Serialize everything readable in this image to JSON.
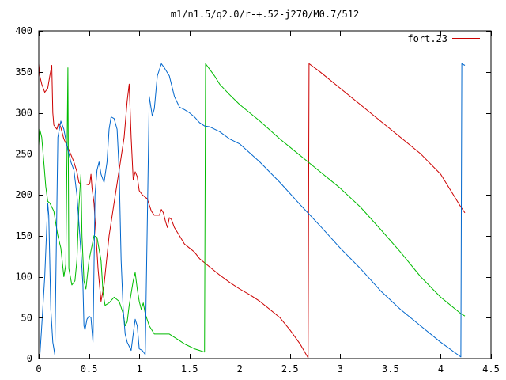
{
  "chart_data": {
    "type": "line",
    "title": "m1/n1.5/q2.0/r-+.52-j270/M0.7/512",
    "xlabel": "",
    "ylabel": "",
    "xlim": [
      0,
      4.5
    ],
    "ylim": [
      0,
      400
    ],
    "x_ticks": [
      0,
      0.5,
      1,
      1.5,
      2,
      2.5,
      3,
      3.5,
      4,
      4.5
    ],
    "x_tick_labels": [
      "0",
      "0.5",
      "1",
      "1.5",
      "2",
      "2.5",
      "3",
      "3.5",
      "4",
      "4.5"
    ],
    "y_ticks": [
      0,
      50,
      100,
      150,
      200,
      250,
      300,
      350,
      400
    ],
    "y_tick_labels": [
      "0",
      "50",
      "100",
      "150",
      "200",
      "250",
      "300",
      "350",
      "400"
    ],
    "grid": false,
    "legend": {
      "position": "top-right",
      "entries": [
        {
          "label": "fort.23",
          "color": "#cc0000"
        }
      ]
    },
    "series": [
      {
        "name": "fort.23",
        "color": "#cc0000",
        "points": [
          [
            0,
            360
          ],
          [
            0.01,
            345
          ],
          [
            0.03,
            335
          ],
          [
            0.06,
            325
          ],
          [
            0.09,
            330
          ],
          [
            0.11,
            345
          ],
          [
            0.13,
            358
          ],
          [
            0.14,
            300
          ],
          [
            0.15,
            285
          ],
          [
            0.18,
            280
          ],
          [
            0.2,
            288
          ],
          [
            0.22,
            282
          ],
          [
            0.25,
            268
          ],
          [
            0.3,
            255
          ],
          [
            0.35,
            240
          ],
          [
            0.38,
            228
          ],
          [
            0.4,
            215
          ],
          [
            0.42,
            213
          ],
          [
            0.47,
            213
          ],
          [
            0.5,
            212
          ],
          [
            0.51,
            215
          ],
          [
            0.52,
            225
          ],
          [
            0.53,
            208
          ],
          [
            0.55,
            190
          ],
          [
            0.57,
            150
          ],
          [
            0.59,
            110
          ],
          [
            0.62,
            70
          ],
          [
            0.65,
            90
          ],
          [
            0.7,
            150
          ],
          [
            0.75,
            190
          ],
          [
            0.8,
            230
          ],
          [
            0.85,
            270
          ],
          [
            0.88,
            315
          ],
          [
            0.9,
            335
          ],
          [
            0.92,
            270
          ],
          [
            0.94,
            218
          ],
          [
            0.96,
            228
          ],
          [
            0.98,
            222
          ],
          [
            1,
            205
          ],
          [
            1.03,
            200
          ],
          [
            1.08,
            195
          ],
          [
            1.12,
            180
          ],
          [
            1.15,
            175
          ],
          [
            1.2,
            175
          ],
          [
            1.22,
            182
          ],
          [
            1.24,
            178
          ],
          [
            1.26,
            168
          ],
          [
            1.28,
            160
          ],
          [
            1.3,
            172
          ],
          [
            1.32,
            170
          ],
          [
            1.35,
            160
          ],
          [
            1.4,
            150
          ],
          [
            1.45,
            140
          ],
          [
            1.5,
            135
          ],
          [
            1.55,
            130
          ],
          [
            1.6,
            122
          ],
          [
            1.65,
            117
          ],
          [
            1.7,
            112
          ],
          [
            1.8,
            102
          ],
          [
            1.9,
            93
          ],
          [
            2,
            85
          ],
          [
            2.1,
            78
          ],
          [
            2.2,
            70
          ],
          [
            2.3,
            60
          ],
          [
            2.4,
            50
          ],
          [
            2.5,
            35
          ],
          [
            2.6,
            18
          ],
          [
            2.68,
            1
          ],
          [
            2.69,
            360
          ],
          [
            2.8,
            350
          ],
          [
            3,
            330
          ],
          [
            3.2,
            310
          ],
          [
            3.4,
            290
          ],
          [
            3.6,
            270
          ],
          [
            3.8,
            250
          ],
          [
            4,
            225
          ],
          [
            4.2,
            185
          ],
          [
            4.24,
            178
          ]
        ]
      },
      {
        "name": "",
        "color": "#00bb00",
        "points": [
          [
            0,
            260
          ],
          [
            0.01,
            280
          ],
          [
            0.03,
            270
          ],
          [
            0.05,
            240
          ],
          [
            0.07,
            210
          ],
          [
            0.09,
            192
          ],
          [
            0.11,
            190
          ],
          [
            0.13,
            185
          ],
          [
            0.15,
            180
          ],
          [
            0.17,
            165
          ],
          [
            0.19,
            150
          ],
          [
            0.22,
            135
          ],
          [
            0.25,
            100
          ],
          [
            0.27,
            115
          ],
          [
            0.29,
            355
          ],
          [
            0.3,
            110
          ],
          [
            0.33,
            90
          ],
          [
            0.36,
            95
          ],
          [
            0.38,
            120
          ],
          [
            0.4,
            185
          ],
          [
            0.42,
            225
          ],
          [
            0.43,
            150
          ],
          [
            0.45,
            95
          ],
          [
            0.47,
            85
          ],
          [
            0.5,
            120
          ],
          [
            0.55,
            150
          ],
          [
            0.58,
            148
          ],
          [
            0.62,
            120
          ],
          [
            0.64,
            80
          ],
          [
            0.66,
            65
          ],
          [
            0.7,
            68
          ],
          [
            0.75,
            75
          ],
          [
            0.8,
            70
          ],
          [
            0.84,
            55
          ],
          [
            0.86,
            40
          ],
          [
            0.88,
            45
          ],
          [
            0.9,
            65
          ],
          [
            0.94,
            95
          ],
          [
            0.96,
            105
          ],
          [
            0.98,
            85
          ],
          [
            1,
            70
          ],
          [
            1.02,
            60
          ],
          [
            1.04,
            68
          ],
          [
            1.06,
            55
          ],
          [
            1.1,
            40
          ],
          [
            1.15,
            30
          ],
          [
            1.2,
            30
          ],
          [
            1.25,
            30
          ],
          [
            1.3,
            30
          ],
          [
            1.4,
            22
          ],
          [
            1.45,
            18
          ],
          [
            1.5,
            15
          ],
          [
            1.55,
            12
          ],
          [
            1.6,
            10
          ],
          [
            1.65,
            8
          ],
          [
            1.66,
            360
          ],
          [
            1.75,
            345
          ],
          [
            1.8,
            335
          ],
          [
            1.9,
            322
          ],
          [
            2,
            310
          ],
          [
            2.2,
            290
          ],
          [
            2.4,
            268
          ],
          [
            2.6,
            248
          ],
          [
            2.8,
            228
          ],
          [
            3,
            208
          ],
          [
            3.2,
            185
          ],
          [
            3.4,
            158
          ],
          [
            3.6,
            130
          ],
          [
            3.8,
            100
          ],
          [
            4,
            75
          ],
          [
            4.2,
            55
          ],
          [
            4.24,
            52
          ]
        ]
      },
      {
        "name": "",
        "color": "#0066cc",
        "points": [
          [
            0,
            5
          ],
          [
            0.01,
            2
          ],
          [
            0.03,
            40
          ],
          [
            0.06,
            100
          ],
          [
            0.09,
            190
          ],
          [
            0.1,
            175
          ],
          [
            0.12,
            60
          ],
          [
            0.14,
            20
          ],
          [
            0.16,
            5
          ],
          [
            0.19,
            270
          ],
          [
            0.22,
            290
          ],
          [
            0.25,
            280
          ],
          [
            0.28,
            260
          ],
          [
            0.32,
            240
          ],
          [
            0.35,
            230
          ],
          [
            0.38,
            200
          ],
          [
            0.42,
            130
          ],
          [
            0.44,
            90
          ],
          [
            0.45,
            40
          ],
          [
            0.46,
            35
          ],
          [
            0.48,
            48
          ],
          [
            0.5,
            52
          ],
          [
            0.52,
            50
          ],
          [
            0.54,
            20
          ],
          [
            0.56,
            200
          ],
          [
            0.58,
            230
          ],
          [
            0.6,
            240
          ],
          [
            0.62,
            225
          ],
          [
            0.65,
            215
          ],
          [
            0.68,
            240
          ],
          [
            0.7,
            280
          ],
          [
            0.72,
            295
          ],
          [
            0.75,
            293
          ],
          [
            0.78,
            280
          ],
          [
            0.8,
            230
          ],
          [
            0.82,
            120
          ],
          [
            0.84,
            60
          ],
          [
            0.86,
            30
          ],
          [
            0.88,
            20
          ],
          [
            0.9,
            15
          ],
          [
            0.92,
            10
          ],
          [
            0.94,
            30
          ],
          [
            0.96,
            48
          ],
          [
            0.98,
            40
          ],
          [
            1,
            12
          ],
          [
            1.03,
            10
          ],
          [
            1.06,
            5
          ],
          [
            1.1,
            320
          ],
          [
            1.13,
            296
          ],
          [
            1.15,
            305
          ],
          [
            1.18,
            345
          ],
          [
            1.22,
            360
          ],
          [
            1.25,
            355
          ],
          [
            1.3,
            345
          ],
          [
            1.35,
            320
          ],
          [
            1.4,
            307
          ],
          [
            1.45,
            304
          ],
          [
            1.5,
            300
          ],
          [
            1.55,
            295
          ],
          [
            1.6,
            288
          ],
          [
            1.65,
            284
          ],
          [
            1.7,
            283
          ],
          [
            1.8,
            277
          ],
          [
            1.9,
            268
          ],
          [
            2,
            262
          ],
          [
            2.2,
            240
          ],
          [
            2.4,
            215
          ],
          [
            2.6,
            188
          ],
          [
            2.8,
            162
          ],
          [
            3,
            135
          ],
          [
            3.2,
            110
          ],
          [
            3.4,
            83
          ],
          [
            3.6,
            60
          ],
          [
            3.8,
            40
          ],
          [
            4,
            20
          ],
          [
            4.2,
            2
          ],
          [
            4.21,
            360
          ],
          [
            4.24,
            358
          ]
        ]
      }
    ]
  }
}
